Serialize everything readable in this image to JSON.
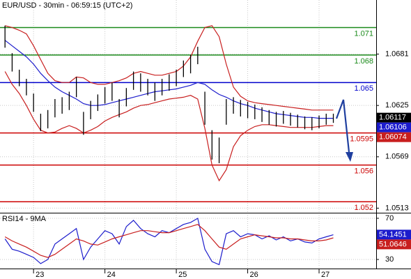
{
  "chart_data": [
    {
      "type": "price-bands",
      "title": "EUR/USD - 30min - 06:59:15 (UTC+2)",
      "x": [
        22.6,
        22.7,
        22.8,
        22.9,
        23.0,
        23.1,
        23.2,
        23.3,
        23.4,
        23.5,
        23.6,
        23.7,
        23.8,
        23.9,
        24.0,
        24.1,
        24.2,
        24.3,
        24.4,
        24.5,
        24.6,
        24.7,
        24.8,
        24.9,
        25.0,
        25.1,
        25.2,
        25.3,
        25.4,
        25.5,
        25.6,
        25.7,
        25.8,
        25.9,
        26.0,
        26.1,
        26.2,
        26.3,
        26.4,
        26.5,
        26.6,
        26.7,
        26.8,
        26.9,
        27.0,
        27.1,
        27.2
      ],
      "xlim": [
        22.53,
        27.8
      ],
      "ylim": [
        1.0508,
        1.074
      ],
      "yticks": [
        1.0681,
        1.0625,
        1.0569,
        1.0513
      ],
      "grid": true,
      "bars": {
        "color": "#000000",
        "high": [
          1.0712,
          1.0682,
          1.0664,
          1.0654,
          1.0638,
          1.0616,
          1.062,
          1.0632,
          1.0634,
          1.064,
          1.0656,
          1.0618,
          1.063,
          1.0637,
          1.0645,
          1.065,
          1.0632,
          1.0644,
          1.0662,
          1.066,
          1.0654,
          1.065,
          1.0654,
          1.0659,
          1.0664,
          1.0674,
          1.068,
          1.0689,
          1.064,
          1.0598,
          1.059,
          1.0632,
          1.0634,
          1.0631,
          1.0629,
          1.0626,
          1.0623,
          1.062,
          1.0618,
          1.0619,
          1.0617,
          1.0615,
          1.0613,
          1.0612,
          1.0614,
          1.0616,
          1.0616
        ],
        "low": [
          1.0688,
          1.0662,
          1.0646,
          1.0636,
          1.0618,
          1.0597,
          1.06,
          1.0612,
          1.0616,
          1.062,
          1.0634,
          1.0593,
          1.061,
          1.0619,
          1.0627,
          1.063,
          1.0612,
          1.0624,
          1.0642,
          1.064,
          1.0636,
          1.063,
          1.0636,
          1.0641,
          1.0646,
          1.0656,
          1.066,
          1.067,
          1.0604,
          1.0566,
          1.0562,
          1.0604,
          1.0616,
          1.0613,
          1.0611,
          1.061,
          1.0607,
          1.0604,
          1.0602,
          1.0605,
          1.0603,
          1.0601,
          1.0599,
          1.0598,
          1.06,
          1.0604,
          1.0606
        ]
      },
      "series": [
        {
          "color": "#1c1ccc",
          "values": [
            1.0696,
            1.069,
            1.0684,
            1.0678,
            1.067,
            1.066,
            1.0652,
            1.0645,
            1.064,
            1.0636,
            1.0632,
            1.0627,
            1.0625,
            1.0625,
            1.0626,
            1.0628,
            1.063,
            1.0632,
            1.0634,
            1.0636,
            1.0638,
            1.064,
            1.0641,
            1.0642,
            1.0643,
            1.0645,
            1.0647,
            1.065,
            1.0648,
            1.0642,
            1.0637,
            1.0634,
            1.063,
            1.0627,
            1.0625,
            1.0622,
            1.062,
            1.0618,
            1.0616,
            1.0615,
            1.0614,
            1.0613,
            1.0612,
            1.0612,
            1.0611,
            1.0611,
            1.0611
          ]
        },
        {
          "color": "#c81e1e",
          "values": [
            1.0712,
            1.071,
            1.0707,
            1.0703,
            1.069,
            1.0675,
            1.066,
            1.0652,
            1.065,
            1.065,
            1.0656,
            1.0655,
            1.065,
            1.0648,
            1.0648,
            1.065,
            1.0652,
            1.0655,
            1.066,
            1.0662,
            1.066,
            1.0658,
            1.0658,
            1.066,
            1.0662,
            1.0668,
            1.0678,
            1.0695,
            1.071,
            1.0712,
            1.07,
            1.067,
            1.0645,
            1.0635,
            1.063,
            1.0628,
            1.0627,
            1.0626,
            1.0625,
            1.0624,
            1.0623,
            1.0622,
            1.0621,
            1.062,
            1.062,
            1.062,
            1.062
          ]
        },
        {
          "color": "#c81e1e",
          "values": [
            1.0662,
            1.0648,
            1.0638,
            1.0625,
            1.061,
            1.0598,
            1.0595,
            1.0596,
            1.06,
            1.0603,
            1.06,
            1.0595,
            1.0598,
            1.0602,
            1.0608,
            1.0612,
            1.0615,
            1.0618,
            1.0622,
            1.0625,
            1.0626,
            1.0628,
            1.063,
            1.0632,
            1.0633,
            1.0634,
            1.0636,
            1.0632,
            1.06,
            1.056,
            1.0543,
            1.0555,
            1.058,
            1.0592,
            1.0598,
            1.0602,
            1.0604,
            1.0604,
            1.0603,
            1.0602,
            1.0601,
            1.0601,
            1.0601,
            1.0601,
            1.0602,
            1.0603,
            1.0603
          ]
        }
      ],
      "levels": [
        {
          "value": 1.071,
          "color": "#1a8a1a"
        },
        {
          "value": 1.068,
          "color": "#1a8a1a"
        },
        {
          "value": 1.065,
          "color": "#0000cc"
        },
        {
          "value": 1.0595,
          "color": "#cc0000"
        },
        {
          "value": 1.056,
          "color": "#cc0000"
        },
        {
          "value": 1.052,
          "color": "#cc0000"
        }
      ],
      "markers": [
        {
          "value": 1.06117,
          "color": "#000000"
        },
        {
          "value": 1.06106,
          "color": "#1c1ccc"
        },
        {
          "value": 1.06074,
          "color": "#c81e1e"
        }
      ]
    },
    {
      "type": "line",
      "title": "RSI14 - 9MA",
      "x": [
        22.6,
        22.7,
        22.8,
        22.9,
        23.0,
        23.1,
        23.2,
        23.3,
        23.4,
        23.5,
        23.6,
        23.7,
        23.8,
        23.9,
        24.0,
        24.1,
        24.2,
        24.3,
        24.4,
        24.5,
        24.6,
        24.7,
        24.8,
        24.9,
        25.0,
        25.1,
        25.2,
        25.3,
        25.4,
        25.5,
        25.6,
        25.7,
        25.8,
        25.9,
        26.0,
        26.1,
        26.2,
        26.3,
        26.4,
        26.5,
        26.6,
        26.7,
        26.8,
        26.9,
        27.0,
        27.1,
        27.2
      ],
      "xlim": [
        22.53,
        27.8
      ],
      "xticks": [
        23,
        24,
        25,
        26,
        27
      ],
      "ylim": [
        21.2,
        75.4
      ],
      "yticks": [
        70,
        30
      ],
      "grid": true,
      "series": [
        {
          "color": "#1c1ccc",
          "values": [
            50,
            40,
            38,
            35,
            32,
            26,
            30,
            45,
            50,
            55,
            60,
            30,
            42,
            50,
            58,
            55,
            45,
            62,
            68,
            60,
            55,
            52,
            58,
            56,
            60,
            64,
            66,
            70,
            40,
            28,
            25,
            55,
            58,
            52,
            55,
            54,
            50,
            53,
            49,
            52,
            48,
            50,
            47,
            46,
            50,
            52,
            54
          ]
        },
        {
          "color": "#c81e1e",
          "values": [
            52,
            48,
            45,
            42,
            38,
            34,
            32,
            35,
            40,
            45,
            50,
            48,
            45,
            44,
            47,
            50,
            52,
            54,
            56,
            58,
            58,
            57,
            56,
            56,
            58,
            60,
            62,
            64,
            58,
            50,
            42,
            40,
            45,
            50,
            52,
            54,
            53,
            52,
            51,
            51,
            50,
            50,
            49,
            48,
            48,
            49,
            51
          ]
        }
      ],
      "markers": [
        {
          "value": 54.1451,
          "color": "#1c1ccc"
        },
        {
          "value": 51.0646,
          "color": "#c81e1e"
        }
      ]
    }
  ]
}
